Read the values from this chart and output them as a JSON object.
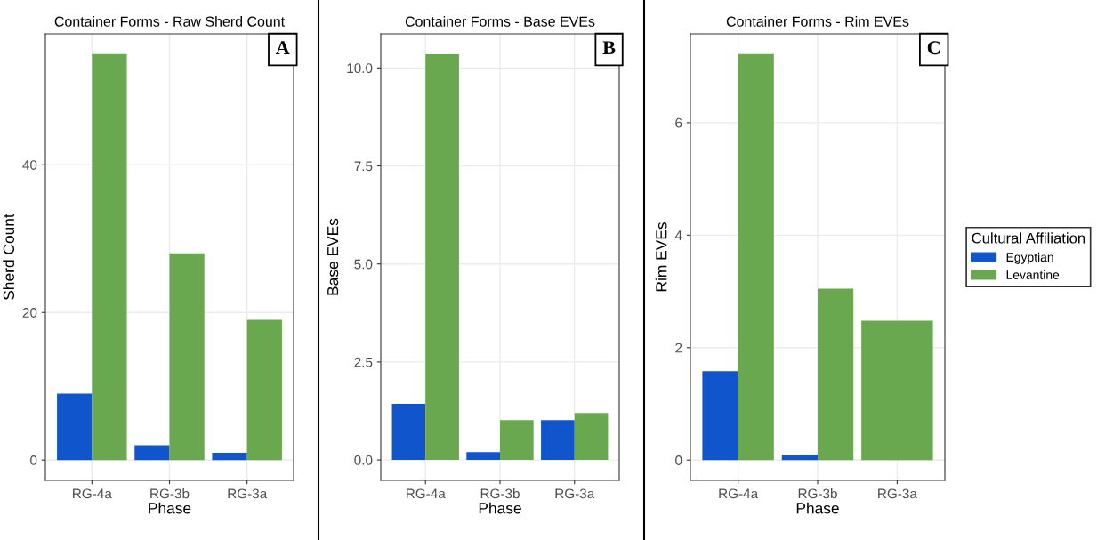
{
  "chart_data": [
    {
      "type": "bar",
      "title": "Container Forms - Raw Sherd Count",
      "xlabel": "Phase",
      "ylabel": "Sherd Count",
      "annotations": [
        "A"
      ],
      "categories": [
        "RG-4a",
        "RG-3b",
        "RG-3a"
      ],
      "series": [
        {
          "color": "#1155cc",
          "values": [
            9,
            2,
            1
          ]
        },
        {
          "color": "#6aa84f",
          "values": [
            55,
            28,
            19
          ]
        }
      ],
      "ylim": [
        -2.75,
        57.75
      ],
      "yticks": [
        0,
        20,
        40
      ],
      "grid": true
    },
    {
      "type": "bar",
      "title": "Container Forms - Base EVEs",
      "xlabel": "Phase",
      "ylabel": "Base EVEs",
      "annotations": [
        "B"
      ],
      "categories": [
        "RG-4a",
        "RG-3b",
        "RG-3a"
      ],
      "series": [
        {
          "color": "#1155cc",
          "values": [
            1.43,
            0.2,
            1.02
          ]
        },
        {
          "color": "#6aa84f",
          "values": [
            10.35,
            1.02,
            1.2
          ]
        }
      ],
      "ylim": [
        -0.52,
        10.87
      ],
      "yticks": [
        {
          "value": 0,
          "label": "0.0"
        },
        2.5,
        {
          "value": 5,
          "label": "5.0"
        },
        7.5,
        {
          "value": 10,
          "label": "10.0"
        }
      ],
      "grid": true
    },
    {
      "type": "bar",
      "title": "Container Forms - Rim EVEs",
      "xlabel": "Phase",
      "ylabel": "Rim EVEs",
      "annotations": [
        "C"
      ],
      "legend_title": "Cultural Affiliation",
      "categories": [
        "RG-4a",
        "RG-3b",
        "RG-3a"
      ],
      "series": [
        {
          "name": "Egyptian",
          "color": "#1155cc",
          "values": [
            1.58,
            0.1,
            null
          ]
        },
        {
          "name": "Levantine",
          "color": "#6aa84f",
          "values": [
            7.22,
            3.05,
            2.48
          ]
        }
      ],
      "ylim": [
        -0.36,
        7.58
      ],
      "yticks": [
        0,
        2,
        4,
        6
      ],
      "grid": true,
      "legend": "right"
    }
  ]
}
